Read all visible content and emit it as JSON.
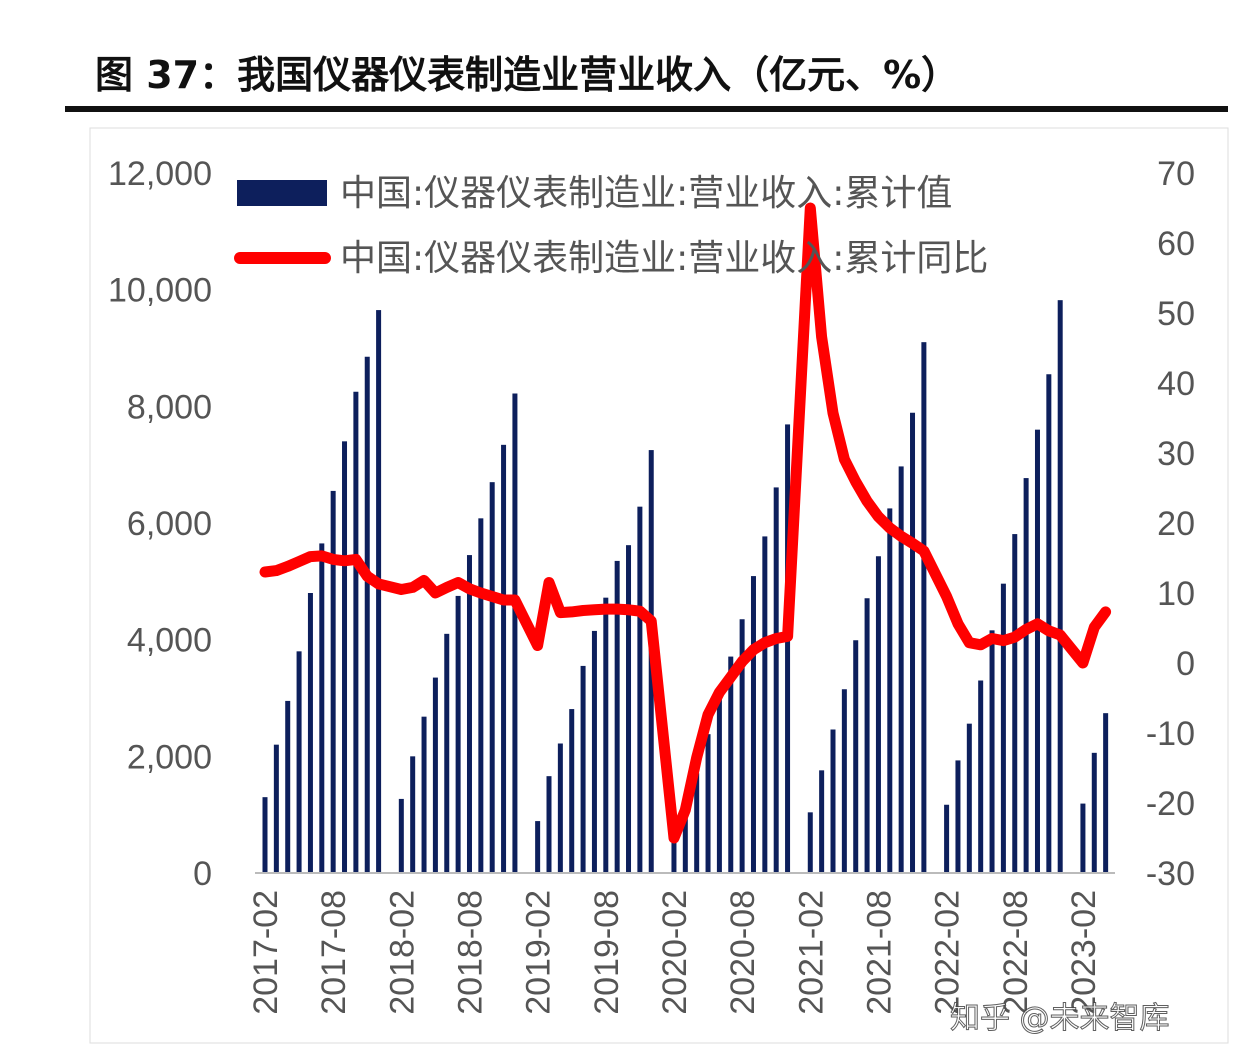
{
  "title": "图 37：我国仪器仪表制造业营业收入（亿元、%）",
  "watermark": "知乎 @未来智库",
  "colors": {
    "bars": "#0d1f5c",
    "line": "#ff0000",
    "negative_tick": "#cc0000",
    "tick": "#555555"
  },
  "chart_data": {
    "type": "bar+line",
    "title": "图 37：我国仪器仪表制造业营业收入（亿元、%）",
    "legend_position": "top",
    "grid": false,
    "x": [
      "2017-02",
      "2017-03",
      "2017-04",
      "2017-05",
      "2017-06",
      "2017-07",
      "2017-08",
      "2017-09",
      "2017-10",
      "2017-11",
      "2017-12",
      "2018-02",
      "2018-03",
      "2018-04",
      "2018-05",
      "2018-06",
      "2018-07",
      "2018-08",
      "2018-09",
      "2018-10",
      "2018-11",
      "2018-12",
      "2019-02",
      "2019-03",
      "2019-04",
      "2019-05",
      "2019-06",
      "2019-07",
      "2019-08",
      "2019-09",
      "2019-10",
      "2019-11",
      "2019-12",
      "2020-02",
      "2020-03",
      "2020-04",
      "2020-05",
      "2020-06",
      "2020-07",
      "2020-08",
      "2020-09",
      "2020-10",
      "2020-11",
      "2020-12",
      "2021-02",
      "2021-03",
      "2021-04",
      "2021-05",
      "2021-06",
      "2021-07",
      "2021-08",
      "2021-09",
      "2021-10",
      "2021-11",
      "2021-12",
      "2022-02",
      "2022-03",
      "2022-04",
      "2022-05",
      "2022-06",
      "2022-07",
      "2022-08",
      "2022-09",
      "2022-10",
      "2022-11",
      "2022-12",
      "2023-02",
      "2023-03",
      "2023-04"
    ],
    "x_tick_labels": [
      "2017-02",
      "2017-08",
      "2018-02",
      "2018-08",
      "2019-02",
      "2019-08",
      "2020-02",
      "2020-08",
      "2021-02",
      "2021-08",
      "2022-02",
      "2022-08",
      "2023-02"
    ],
    "left_axis": {
      "ylim": [
        0,
        12000
      ],
      "ticks": [
        "0",
        "2,000",
        "4,000",
        "6,000",
        "8,000",
        "10,000",
        "12,000"
      ]
    },
    "right_axis": {
      "ylim": [
        -30,
        70
      ],
      "ticks": [
        "-30",
        "-20",
        "-10",
        "0",
        "10",
        "20",
        "30",
        "40",
        "50",
        "60",
        "70"
      ]
    },
    "series": [
      {
        "name": "中国:仪器仪表制造业:营业收入:累计值",
        "type": "bar",
        "axis": "left",
        "values": [
          1300,
          2200,
          2950,
          3800,
          4800,
          5650,
          6550,
          7400,
          8250,
          8850,
          9650,
          1270,
          2000,
          2680,
          3350,
          4100,
          4750,
          5450,
          6080,
          6700,
          7340,
          8220,
          890,
          1660,
          2220,
          2810,
          3550,
          4150,
          4720,
          5350,
          5620,
          6280,
          7250,
          650,
          990,
          1710,
          2380,
          2990,
          3710,
          4350,
          5090,
          5770,
          6610,
          7690,
          1040,
          1760,
          2460,
          3150,
          3990,
          4710,
          5430,
          6250,
          6970,
          7890,
          9100,
          1170,
          1930,
          2560,
          3300,
          4160,
          4960,
          5810,
          6770,
          7600,
          8550,
          9820,
          1190,
          2060,
          2740
        ]
      },
      {
        "name": "中国:仪器仪表制造业:营业收入:累计同比",
        "type": "line",
        "axis": "right",
        "values": [
          13.0,
          13.2,
          13.8,
          14.5,
          15.2,
          15.3,
          14.8,
          14.6,
          14.8,
          12.4,
          11.3,
          10.5,
          10.8,
          11.8,
          10.0,
          10.8,
          11.5,
          10.6,
          10.0,
          9.5,
          9.0,
          9.0,
          2.5,
          11.5,
          7.2,
          7.3,
          7.5,
          7.6,
          7.7,
          7.7,
          7.6,
          7.4,
          6.0,
          -25.0,
          -21.0,
          -13.5,
          -7.4,
          -4.2,
          -2.0,
          0.2,
          1.9,
          2.9,
          3.5,
          3.8,
          65.0,
          46.6,
          35.7,
          29.1,
          25.9,
          23.1,
          20.9,
          19.3,
          18.1,
          17.1,
          16.0,
          9.5,
          5.6,
          2.9,
          2.6,
          3.5,
          3.2,
          3.7,
          4.8,
          5.6,
          4.6,
          4.0,
          0.0,
          5.1,
          7.3
        ]
      }
    ]
  }
}
